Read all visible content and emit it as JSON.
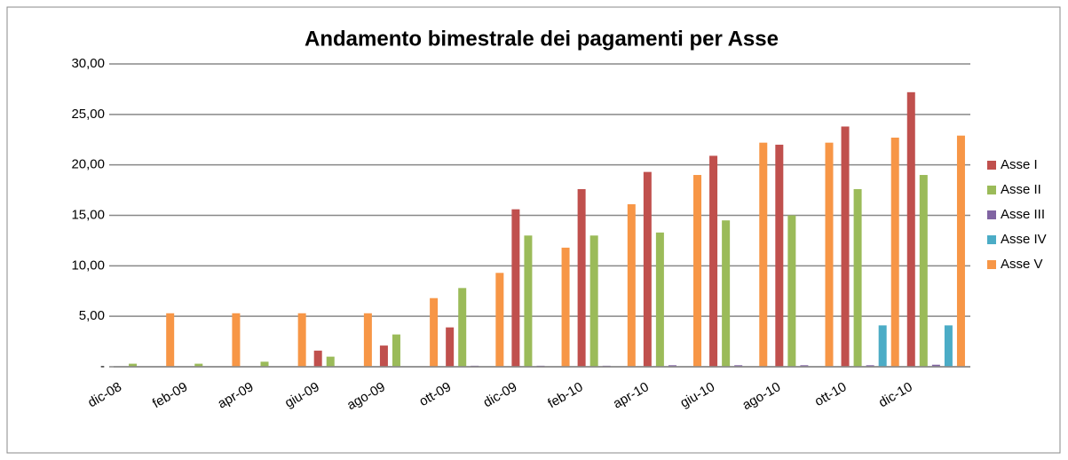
{
  "chart_data": {
    "type": "bar",
    "title": "Andamento bimestrale dei pagamenti per  Asse",
    "categories": [
      "dic-08",
      "feb-09",
      "apr-09",
      "giu-09",
      "ago-09",
      "ott-09",
      "dic-09",
      "feb-10",
      "apr-10",
      "giu-10",
      "ago-10",
      "ott-10",
      "dic-10"
    ],
    "series": [
      {
        "name": "Asse I",
        "color": "#c0504d",
        "values": [
          0,
          0,
          0,
          1.6,
          2.1,
          3.9,
          15.6,
          17.6,
          19.3,
          20.9,
          22.0,
          23.8,
          27.2
        ]
      },
      {
        "name": "Asse II",
        "color": "#9bbb59",
        "values": [
          0.3,
          0.3,
          0.5,
          1.0,
          3.2,
          7.8,
          13.0,
          13.0,
          13.3,
          14.5,
          15.0,
          17.6,
          19.0
        ]
      },
      {
        "name": "Asse III",
        "color": "#8064a2",
        "values": [
          0,
          0,
          0,
          0,
          0,
          0.1,
          0.1,
          0.1,
          0.15,
          0.15,
          0.15,
          0.15,
          0.2
        ]
      },
      {
        "name": "Asse IV",
        "color": "#4bacc6",
        "values": [
          0,
          0,
          0,
          0,
          0,
          0,
          0,
          0,
          0,
          0,
          0,
          4.1,
          4.1
        ]
      },
      {
        "name": "Asse V",
        "color": "#f79646",
        "values": [
          5.3,
          5.3,
          5.3,
          5.3,
          6.8,
          9.3,
          11.8,
          16.1,
          19.0,
          22.2,
          22.2,
          22.7,
          22.9
        ]
      }
    ],
    "ylim": [
      0,
      30
    ],
    "yticks": [
      {
        "value": 0,
        "label": "-"
      },
      {
        "value": 5,
        "label": "5,00"
      },
      {
        "value": 10,
        "label": "10,00"
      },
      {
        "value": 15,
        "label": "15,00"
      },
      {
        "value": 20,
        "label": "20,00"
      },
      {
        "value": 25,
        "label": "25,00"
      },
      {
        "value": 30,
        "label": "30,00"
      }
    ],
    "grid": true,
    "legend": "right"
  }
}
